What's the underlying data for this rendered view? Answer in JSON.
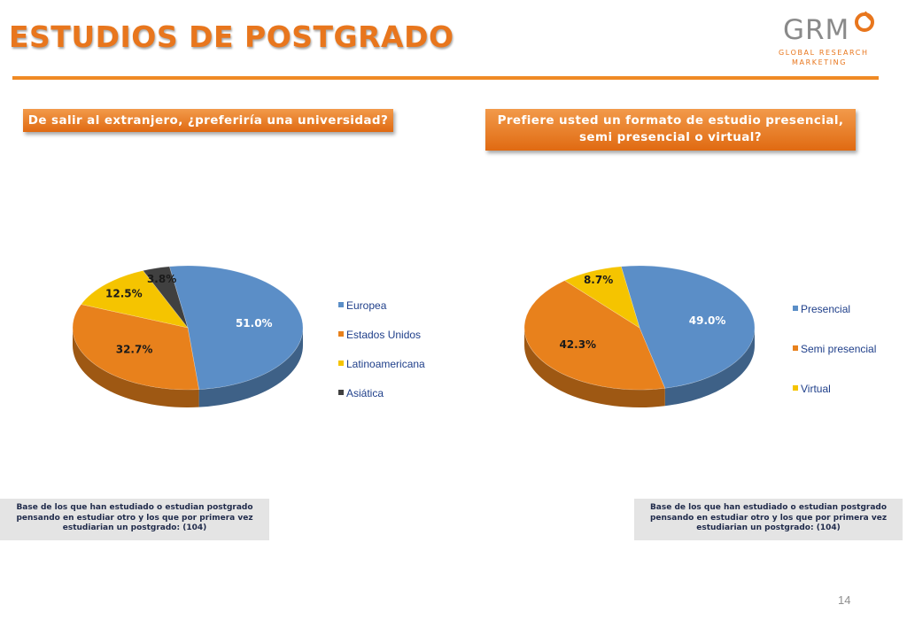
{
  "page": {
    "title": "ESTUDIOS DE POSTGRADO",
    "page_number": "14"
  },
  "logo": {
    "brand": "GRM",
    "line1": "GLOBAL RESEARCH",
    "line2": "MARKETING",
    "icon": "gear-circle-icon"
  },
  "questions": {
    "q1": "De salir al extranjero, ¿preferiría una universidad?",
    "q2_line1": "Prefiere usted un formato de estudio presencial,",
    "q2_line2": "semi presencial o virtual?"
  },
  "notes": {
    "n1": "Base de los que han estudiado o estudian postgrado pensando en estudiar otro y los que por primera vez estudiarian un postgrado: (104)",
    "n2": "Base de los que han estudiado o estudian postgrado pensando en estudiar otro y los que por primera vez estudiarian un postgrado: (104)"
  },
  "colors": {
    "blue": "#5b8ec7",
    "orange": "#e8811c",
    "yellow": "#f5c400",
    "dark": "#404040",
    "accent": "#e8761d"
  },
  "chart_data": [
    {
      "type": "pie",
      "title": "",
      "series": [
        {
          "name": "Europea",
          "value": 51.0,
          "label": "51.0%",
          "color": "#5b8ec7"
        },
        {
          "name": "Estados Unidos",
          "value": 32.7,
          "label": "32.7%",
          "color": "#e8811c"
        },
        {
          "name": "Latinoamericana",
          "value": 12.5,
          "label": "12.5%",
          "color": "#f5c400"
        },
        {
          "name": "Asiática",
          "value": 3.8,
          "label": "3.8%",
          "color": "#404040"
        }
      ],
      "legend": "right"
    },
    {
      "type": "pie",
      "title": "",
      "series": [
        {
          "name": "Presencial",
          "value": 49.0,
          "label": "49.0%",
          "color": "#5b8ec7"
        },
        {
          "name": "Semi presencial",
          "value": 42.3,
          "label": "42.3%",
          "color": "#e8811c"
        },
        {
          "name": "Virtual",
          "value": 8.7,
          "label": "8.7%",
          "color": "#f5c400"
        }
      ],
      "legend": "right"
    }
  ]
}
